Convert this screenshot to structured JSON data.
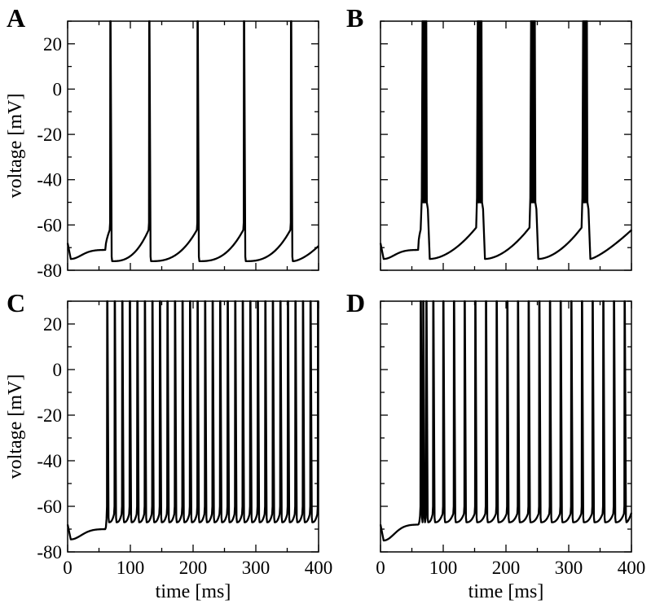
{
  "chart_data": [
    {
      "panel": "A",
      "type": "line",
      "xlim": [
        0,
        400
      ],
      "ylim": [
        -80,
        30
      ],
      "yticks": [
        "-80",
        "-60",
        "-40",
        "-20",
        "0",
        "20"
      ],
      "xticks": [],
      "ylabel": "voltage [mV]",
      "xlabel": "",
      "pattern": "regular_spiking",
      "rest_start": -68,
      "rest_min": -75,
      "stim_onset": 60,
      "plateau": -71,
      "spike_times": [
        68,
        130,
        207,
        281,
        356
      ],
      "trough": -76,
      "threshold": -62,
      "end_value": -69,
      "line_color": "#000000"
    },
    {
      "panel": "B",
      "type": "line",
      "xlim": [
        0,
        400
      ],
      "ylim": [
        -80,
        30
      ],
      "yticks": [],
      "xticks": [],
      "ylabel": "",
      "xlabel": "",
      "pattern": "bursting",
      "rest_start": -68,
      "rest_min": -75,
      "stim_onset": 60,
      "plateau": -71,
      "burst_times": [
        67,
        155,
        240,
        323
      ],
      "spikes_per_burst": 5,
      "intra_burst_isi": 1.5,
      "burst_floor": -50,
      "trough": -75,
      "threshold": -61,
      "end_value": -62,
      "line_color": "#000000"
    },
    {
      "panel": "C",
      "type": "line",
      "xlim": [
        0,
        400
      ],
      "ylim": [
        -80,
        30
      ],
      "yticks": [
        "-80",
        "-60",
        "-40",
        "-20",
        "0",
        "20"
      ],
      "xticks": [
        "0",
        "100",
        "200",
        "300",
        "400"
      ],
      "ylabel": "voltage [mV]",
      "xlabel": "time [ms]",
      "pattern": "fast_spiking",
      "rest_start": -68,
      "rest_min": -74.5,
      "stim_onset": 60,
      "plateau": -70,
      "spike_times": [
        63,
        75,
        87,
        99,
        111,
        123,
        135,
        147,
        159,
        171,
        183,
        195,
        207,
        219,
        231,
        243,
        255,
        267,
        279,
        291,
        303,
        315,
        327,
        339,
        351,
        363,
        375,
        387,
        399
      ],
      "trough": -67,
      "threshold": -63,
      "end_value": -66,
      "line_color": "#000000"
    },
    {
      "panel": "D",
      "type": "line",
      "xlim": [
        0,
        400
      ],
      "ylim": [
        -80,
        30
      ],
      "yticks": [],
      "xticks": [
        "0",
        "100",
        "200",
        "300",
        "400"
      ],
      "ylabel": "",
      "xlabel": "time [ms]",
      "pattern": "chattering_then_regular",
      "rest_start": -68,
      "rest_min": -75,
      "stim_onset": 60,
      "plateau": -68,
      "spike_times": [
        64,
        68,
        73,
        84,
        100,
        117,
        134,
        151,
        168,
        185,
        202,
        219,
        236,
        253,
        270,
        287,
        304,
        321,
        338,
        355,
        372,
        389
      ],
      "trough": -67,
      "threshold": -63,
      "end_value": -62,
      "line_color": "#000000"
    }
  ]
}
